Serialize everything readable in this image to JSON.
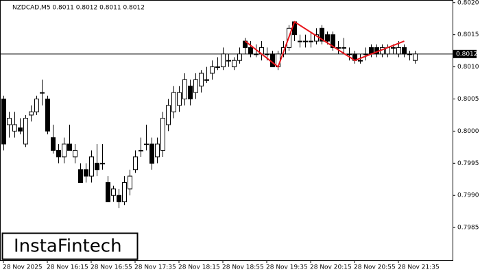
{
  "chart_data": {
    "type": "candlestick",
    "title": "NZDCAD,M5  0.8011 0.8012 0.8011 0.8012",
    "logo": "InstaFintech",
    "up_color": "#ffffff",
    "down_color": "#000000",
    "categories": [
      "28 Nov 2025",
      null,
      null,
      null,
      null,
      null,
      null,
      null,
      "28 Nov 16:15",
      null,
      null,
      null,
      null,
      null,
      null,
      null,
      "28 Nov 16:55",
      null,
      null,
      null,
      null,
      null,
      null,
      null,
      "28 Nov 17:35",
      null,
      null,
      null,
      null,
      null,
      null,
      null,
      "28 Nov 18:15",
      null,
      null,
      null,
      null,
      null,
      null,
      null,
      "28 Nov 18:55",
      null,
      null,
      null,
      null,
      null,
      null,
      null,
      "28 Nov 19:35",
      null,
      null,
      null,
      null,
      null,
      null,
      null,
      "28 Nov 20:15",
      null,
      null,
      null,
      null,
      null,
      null,
      null,
      "28 Nov 20:55",
      null,
      null,
      null,
      null,
      null,
      null,
      null,
      "28 Nov 21:35",
      null,
      null,
      null
    ],
    "ohlc": [
      [
        0.8005,
        0.80055,
        0.7997,
        0.7998
      ],
      [
        0.8001,
        0.8003,
        0.7999,
        0.8002
      ],
      [
        0.8,
        0.8003,
        0.7999,
        0.8001
      ],
      [
        0.80005,
        0.8002,
        0.79995,
        0.8
      ],
      [
        0.7998,
        0.80025,
        0.79975,
        0.8002
      ],
      [
        0.80025,
        0.8004,
        0.80015,
        0.8003
      ],
      [
        0.8003,
        0.80055,
        0.80025,
        0.8005
      ],
      [
        0.8006,
        0.8008,
        0.8004,
        0.8006
      ],
      [
        0.8005,
        0.80055,
        0.79995,
        0.8
      ],
      [
        0.7999,
        0.8001,
        0.79965,
        0.7997
      ],
      [
        0.7997,
        0.7998,
        0.7995,
        0.7996
      ],
      [
        0.7996,
        0.7999,
        0.7995,
        0.7998
      ],
      [
        0.7998,
        0.8001,
        0.7997,
        0.7997
      ],
      [
        0.7996,
        0.7998,
        0.7995,
        0.7997
      ],
      [
        0.7994,
        0.7995,
        0.7992,
        0.7992
      ],
      [
        0.7994,
        0.7995,
        0.7992,
        0.7993
      ],
      [
        0.7993,
        0.7997,
        0.7992,
        0.7996
      ],
      [
        0.7995,
        0.7998,
        0.7993,
        0.7994
      ],
      [
        0.7995,
        0.7998,
        0.7994,
        0.7995
      ],
      [
        0.7992,
        0.7993,
        0.7989,
        0.7989
      ],
      [
        0.799,
        0.79915,
        0.7989,
        0.7991
      ],
      [
        0.799,
        0.7991,
        0.7988,
        0.7989
      ],
      [
        0.7989,
        0.7993,
        0.79885,
        0.7992
      ],
      [
        0.7991,
        0.7994,
        0.799,
        0.7993
      ],
      [
        0.7994,
        0.7997,
        0.79935,
        0.7996
      ],
      [
        0.7997,
        0.7999,
        0.7996,
        0.7997
      ],
      [
        0.7998,
        0.8001,
        0.7997,
        0.7998
      ],
      [
        0.7998,
        0.7999,
        0.7994,
        0.7995
      ],
      [
        0.7996,
        0.7999,
        0.7995,
        0.7998
      ],
      [
        0.7997,
        0.8003,
        0.7996,
        0.8002
      ],
      [
        0.8001,
        0.8005,
        0.8,
        0.8004
      ],
      [
        0.8003,
        0.8007,
        0.8002,
        0.8006
      ],
      [
        0.8004,
        0.8007,
        0.8003,
        0.8006
      ],
      [
        0.8005,
        0.8009,
        0.8004,
        0.8008
      ],
      [
        0.8007,
        0.8008,
        0.8004,
        0.8005
      ],
      [
        0.8006,
        0.8009,
        0.8005,
        0.8008
      ],
      [
        0.8007,
        0.80095,
        0.8006,
        0.8009
      ],
      [
        0.8008,
        0.801,
        0.80075,
        0.8008
      ],
      [
        0.8009,
        0.8011,
        0.8008,
        0.801
      ],
      [
        0.801,
        0.80115,
        0.80095,
        0.801
      ],
      [
        0.801,
        0.8013,
        0.80095,
        0.8012
      ],
      [
        0.8011,
        0.8012,
        0.801,
        0.8011
      ],
      [
        0.801,
        0.80115,
        0.80095,
        0.8011
      ],
      [
        0.8011,
        0.8013,
        0.80105,
        0.8012
      ],
      [
        0.8014,
        0.80145,
        0.8012,
        0.8013
      ],
      [
        0.8013,
        0.8014,
        0.80115,
        0.8012
      ],
      [
        0.8012,
        0.80135,
        0.80115,
        0.8012
      ],
      [
        0.8012,
        0.8014,
        0.8011,
        0.8013
      ],
      [
        0.8012,
        0.8013,
        0.8011,
        0.8012
      ],
      [
        0.8012,
        0.80125,
        0.801,
        0.801
      ],
      [
        0.801,
        0.80125,
        0.80095,
        0.8012
      ],
      [
        0.8012,
        0.8014,
        0.80115,
        0.8013
      ],
      [
        0.8013,
        0.80165,
        0.80125,
        0.8016
      ],
      [
        0.8017,
        0.8017,
        0.8014,
        0.8015
      ],
      [
        0.8014,
        0.8015,
        0.8013,
        0.8014
      ],
      [
        0.8014,
        0.8015,
        0.8013,
        0.8014
      ],
      [
        0.8014,
        0.80155,
        0.8013,
        0.8014
      ],
      [
        0.8014,
        0.8016,
        0.80135,
        0.8015
      ],
      [
        0.8016,
        0.80165,
        0.80135,
        0.8014
      ],
      [
        0.8015,
        0.80155,
        0.80135,
        0.8014
      ],
      [
        0.8015,
        0.80155,
        0.80125,
        0.8013
      ],
      [
        0.8013,
        0.8014,
        0.8012,
        0.8013
      ],
      [
        0.8013,
        0.80145,
        0.8012,
        0.8013
      ],
      [
        0.8012,
        0.8013,
        0.8011,
        0.8012
      ],
      [
        0.8012,
        0.80125,
        0.80105,
        0.8011
      ],
      [
        0.8011,
        0.8012,
        0.80105,
        0.8011
      ],
      [
        0.8012,
        0.8013,
        0.8011,
        0.8012
      ],
      [
        0.8013,
        0.80135,
        0.80115,
        0.8012
      ],
      [
        0.8013,
        0.80135,
        0.80115,
        0.8012
      ],
      [
        0.8012,
        0.80135,
        0.80115,
        0.8013
      ],
      [
        0.8012,
        0.80135,
        0.80115,
        0.8013
      ],
      [
        0.8013,
        0.80135,
        0.8012,
        0.8013
      ],
      [
        0.8012,
        0.8014,
        0.80115,
        0.8013
      ],
      [
        0.8013,
        0.80135,
        0.80115,
        0.8012
      ],
      [
        0.8012,
        0.80125,
        0.8011,
        0.8012
      ],
      [
        0.8011,
        0.80125,
        0.80105,
        0.8012
      ]
    ],
    "pattern": {
      "color": "#e8151b",
      "x": [
        44,
        50,
        53,
        64,
        73
      ],
      "values": [
        0.8014,
        0.801,
        0.8017,
        0.8011,
        0.8014
      ]
    },
    "last_price": {
      "value": 0.8012,
      "label": "0.8012"
    },
    "ylim": [
      0.79799,
      0.80204
    ],
    "yticks": [
      {
        "value": 0.802,
        "label": "0.8020"
      },
      {
        "value": 0.8015,
        "label": "0.8015"
      },
      {
        "value": 0.801,
        "label": "0.8010"
      },
      {
        "value": 0.8005,
        "label": "0.8005"
      },
      {
        "value": 0.8,
        "label": "0.8000"
      },
      {
        "value": 0.7995,
        "label": "0.7995"
      },
      {
        "value": 0.799,
        "label": "0.7990"
      },
      {
        "value": 0.7985,
        "label": "0.7985"
      }
    ]
  }
}
